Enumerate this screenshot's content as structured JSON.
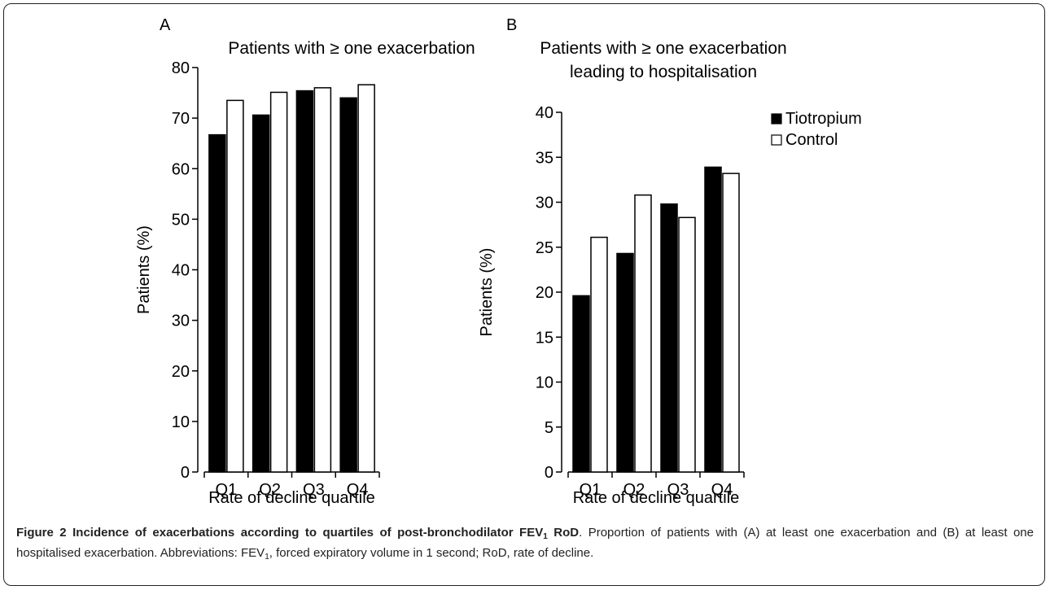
{
  "chart_data": [
    {
      "panel": "A",
      "type": "bar",
      "title": "Patients with ≥ one exacerbation",
      "categories": [
        "Q1",
        "Q2",
        "Q3",
        "Q4"
      ],
      "series": [
        {
          "name": "Tiotropium",
          "values": [
            66.7,
            70.6,
            75.4,
            74.0
          ]
        },
        {
          "name": "Control",
          "values": [
            73.5,
            75.1,
            76.0,
            76.6
          ]
        }
      ],
      "xlabel": "Rate of decline quartile",
      "ylabel": "Patients (%)",
      "ylim": [
        0,
        80
      ],
      "yticks": [
        0,
        10,
        20,
        30,
        40,
        50,
        60,
        70,
        80
      ],
      "colors": {
        "Tiotropium": "#000000",
        "Control": "#ffffff"
      },
      "grid": false
    },
    {
      "panel": "B",
      "type": "bar",
      "title_lines": [
        "Patients with ≥ one exacerbation",
        "leading to hospitalisation"
      ],
      "categories": [
        "Q1",
        "Q2",
        "Q3",
        "Q4"
      ],
      "series": [
        {
          "name": "Tiotropium",
          "values": [
            19.6,
            24.3,
            29.8,
            33.9
          ]
        },
        {
          "name": "Control",
          "values": [
            26.1,
            30.8,
            28.3,
            33.2
          ]
        }
      ],
      "xlabel": "Rate of decline quartile",
      "ylabel": "Patients (%)",
      "ylim": [
        0,
        40
      ],
      "yticks": [
        0,
        5,
        10,
        15,
        20,
        25,
        30,
        35,
        40
      ],
      "colors": {
        "Tiotropium": "#000000",
        "Control": "#ffffff"
      },
      "legend": {
        "placement": "top-right",
        "entries": [
          "Tiotropium",
          "Control"
        ]
      },
      "grid": false
    }
  ],
  "caption": {
    "label": "Figure 2",
    "bold_title_pre": "Incidence of exacerbations according to quartiles of post-bronchodilator FEV",
    "bold_title_sub": "1",
    "bold_title_post": " RoD",
    "text_1": ". Proportion of patients with (A) at least one exacerbation and (B) at least one hospitalised exacerbation. Abbreviations: FEV",
    "text_1_sub": "1",
    "text_2": ", forced expiratory volume in 1 second; RoD, rate of decline."
  }
}
